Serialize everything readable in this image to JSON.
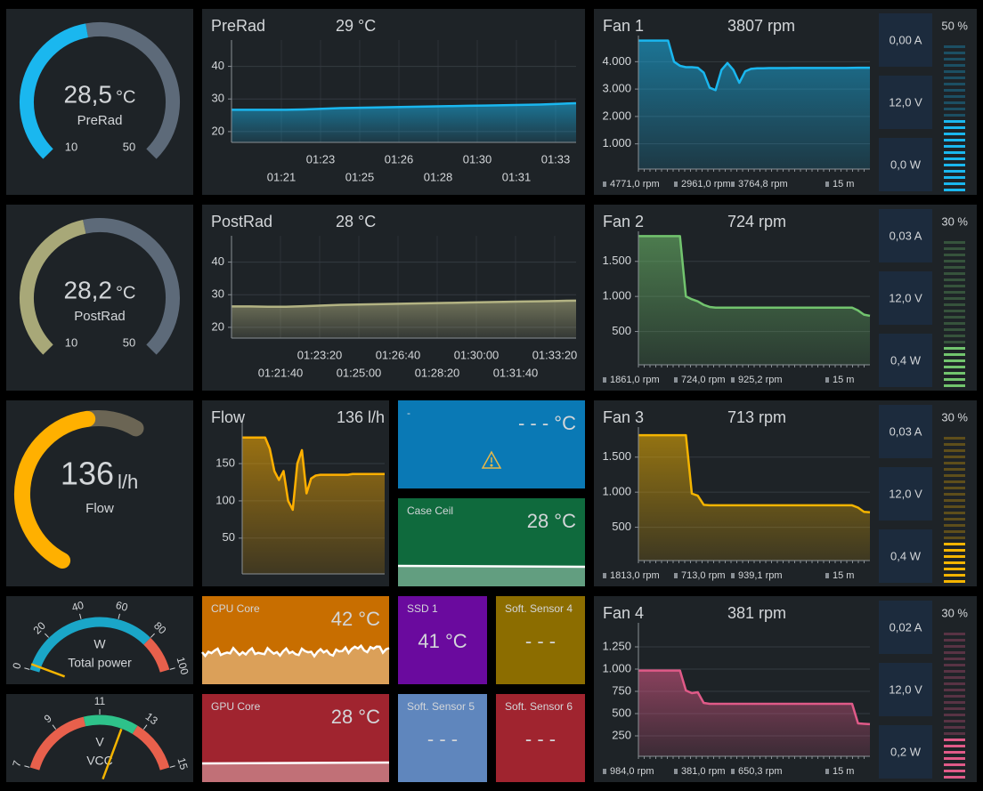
{
  "gauges": [
    {
      "value": {
        "value": 28.5,
        "label": "28,5"
      },
      "unit": "°C",
      "label": "PreRad",
      "min": 10,
      "max": 50,
      "color": "#1ab7ef"
    },
    {
      "value": {
        "value": 28.2,
        "label": "28,2"
      },
      "unit": "°C",
      "label": "PostRad",
      "min": 10,
      "max": 50,
      "color": "#a8a878"
    },
    {
      "value": 136,
      "unit": "l/h",
      "label": "Flow",
      "color": "#ffb000"
    }
  ],
  "charts": [
    {
      "title": "PreRad",
      "reading": "29 °C",
      "color": "#1ab7ef",
      "ylim": [
        16.7,
        46.7
      ],
      "yticks": [
        20,
        30,
        40
      ],
      "xticks_top": [
        "01:23",
        "01:26",
        "01:30",
        "01:33"
      ],
      "xticks_bottom": [
        "01:21",
        "01:25",
        "01:28",
        "01:31"
      ],
      "values": [
        26.7,
        26.7,
        26.7,
        26.7,
        26.8,
        27.0,
        27.2,
        27.3,
        27.4,
        27.5,
        27.6,
        27.7,
        27.8,
        27.9,
        28.0,
        28.1,
        28.2,
        28.3,
        28.5,
        28.7
      ]
    },
    {
      "title": "PostRad",
      "reading": "28 °C",
      "color": "#b3b383",
      "ylim": [
        16.7,
        46.7
      ],
      "yticks": [
        20,
        30,
        40
      ],
      "xticks_top": [
        "01:23:20",
        "01:26:40",
        "01:30:00",
        "01:33:20"
      ],
      "xticks_bottom": [
        "01:21:40",
        "01:25:00",
        "01:28:20",
        "01:31:40"
      ],
      "values": [
        26.4,
        26.4,
        26.3,
        26.3,
        26.5,
        26.7,
        26.9,
        27.0,
        27.1,
        27.2,
        27.3,
        27.4,
        27.5,
        27.6,
        27.7,
        27.8,
        27.9,
        28.0,
        28.1,
        28.2
      ]
    },
    {
      "title": "Flow",
      "reading": "136 l/h",
      "color": "#ffb000",
      "ylim": [
        2,
        199
      ],
      "yticks": [
        50,
        100,
        150
      ],
      "values": [
        185,
        185,
        185,
        185,
        185,
        185,
        170,
        140,
        128,
        140,
        100,
        88,
        150,
        168,
        110,
        130,
        134,
        135,
        135,
        135,
        135,
        135,
        135,
        135,
        136,
        136,
        136,
        136,
        136,
        136,
        136,
        136
      ]
    }
  ],
  "fans": [
    {
      "title": "Fan 1",
      "reading": "3807 rpm",
      "color": "#1ab7ef",
      "ylim": [
        80,
        4790
      ],
      "yticks": [
        {
          "value": 1000,
          "label": "1.000"
        },
        {
          "value": 2000,
          "label": "2.000"
        },
        {
          "value": 3000,
          "label": "3.000"
        },
        {
          "value": 4000,
          "label": "4.000"
        }
      ],
      "values": [
        4771,
        4771,
        4771,
        4771,
        4771,
        4771,
        4000,
        3850,
        3800,
        3800,
        3780,
        3600,
        3050,
        2961,
        3700,
        3950,
        3700,
        3230,
        3650,
        3740,
        3760,
        3760,
        3765,
        3765,
        3765,
        3765,
        3770,
        3770,
        3770,
        3770,
        3770,
        3770,
        3770,
        3770,
        3770,
        3770,
        3775,
        3780,
        3780,
        3780
      ],
      "stats": [
        "4771,0 rpm",
        "2961,0 rpm",
        "3764,8 rpm",
        "15 m"
      ],
      "amps": "0,00 A",
      "volts": "12,0 V",
      "watts": "0,0 W",
      "percent": {
        "value": 50,
        "label": "50 %"
      }
    },
    {
      "title": "Fan 2",
      "reading": "724 rpm",
      "color": "#72c46e",
      "ylim": [
        25,
        1865
      ],
      "yticks": [
        500,
        {
          "value": 1000,
          "label": "1.000"
        },
        {
          "value": 1500,
          "label": "1.500"
        }
      ],
      "values": [
        1861,
        1861,
        1861,
        1861,
        1861,
        1861,
        1861,
        1861,
        1000,
        960,
        930,
        880,
        850,
        840,
        840,
        840,
        840,
        840,
        840,
        840,
        840,
        840,
        840,
        840,
        840,
        840,
        840,
        840,
        840,
        840,
        840,
        840,
        840,
        840,
        840,
        840,
        840,
        800,
        740,
        724
      ],
      "stats": [
        "1861,0 rpm",
        "724,0 rpm",
        "925,2 rpm",
        "15 m"
      ],
      "amps": "0,03 A",
      "volts": "12,0 V",
      "watts": "0,4 W",
      "percent": {
        "value": 30,
        "label": "30 %"
      }
    },
    {
      "title": "Fan 3",
      "reading": "713 rpm",
      "color": "#f4b400",
      "ylim": [
        25,
        1865
      ],
      "yticks": [
        500,
        {
          "value": 1000,
          "label": "1.000"
        },
        {
          "value": 1500,
          "label": "1.500"
        }
      ],
      "values": [
        1813,
        1813,
        1813,
        1813,
        1813,
        1813,
        1813,
        1813,
        1813,
        980,
        950,
        820,
        813,
        813,
        813,
        813,
        813,
        813,
        813,
        813,
        813,
        813,
        813,
        813,
        813,
        813,
        813,
        813,
        813,
        813,
        813,
        813,
        813,
        813,
        813,
        813,
        813,
        780,
        720,
        713
      ],
      "stats": [
        "1813,0 rpm",
        "713,0 rpm",
        "939,1 rpm",
        "15 m"
      ],
      "amps": "0,03 A",
      "volts": "12,0 V",
      "watts": "0,4 W",
      "percent": {
        "value": 30,
        "label": "30 %"
      }
    },
    {
      "title": "Fan 4",
      "reading": "381 rpm",
      "color": "#e05a88",
      "ylim": [
        20,
        1470
      ],
      "yticks": [
        250,
        500,
        750,
        {
          "value": 1000,
          "label": "1.000"
        },
        {
          "value": 1250,
          "label": "1.250"
        }
      ],
      "values": [
        984,
        984,
        984,
        984,
        984,
        984,
        984,
        984,
        760,
        730,
        740,
        620,
        610,
        610,
        610,
        610,
        610,
        610,
        610,
        610,
        610,
        610,
        610,
        610,
        610,
        610,
        610,
        610,
        610,
        610,
        610,
        610,
        610,
        610,
        610,
        610,
        610,
        390,
        385,
        381
      ],
      "stats": [
        "984,0 rpm",
        "381,0 rpm",
        "650,3 rpm",
        "15 m"
      ],
      "amps": "0,02 A",
      "volts": "12,0 V",
      "watts": "0,2 W",
      "percent": {
        "value": 30,
        "label": "30 %"
      }
    }
  ],
  "tiles": [
    {
      "title": "-",
      "reading": "- - - °C",
      "color": "#0a79b5"
    },
    {
      "title": "Case Ceil",
      "reading": "28 °C",
      "color": "#0f6a3d"
    },
    {
      "title": "CPU Core",
      "reading": "42 °C",
      "color": "#c86e00"
    },
    {
      "title": "GPU Core",
      "reading": "28 °C",
      "color": "#a0242f"
    },
    {
      "title": "SSD 1",
      "reading": "41 °C",
      "color": "#6a0a9e"
    },
    {
      "title": "Soft. Sensor 4",
      "reading": "- - -",
      "color": "#8c6d00"
    },
    {
      "title": "Soft. Sensor 5",
      "reading": "- - -",
      "color": "#5f86bd"
    },
    {
      "title": "Soft. Sensor 6",
      "reading": "- - -",
      "color": "#a0242f"
    }
  ],
  "dials": [
    {
      "unit": "W",
      "label": "Total power",
      "lim": [
        0,
        100
      ],
      "ticks": [
        0,
        20,
        40,
        60,
        80,
        100
      ],
      "value": 3,
      "zones": [
        {
          "from": 0,
          "to": 80,
          "color": "#1aa6c8"
        },
        {
          "from": 80,
          "to": 100,
          "color": "#e8604c"
        }
      ]
    },
    {
      "unit": "V",
      "label": "VCC",
      "lim": [
        7,
        15
      ],
      "ticks": [
        7,
        9,
        11,
        13,
        15
      ],
      "value": 12.1,
      "zones": [
        {
          "from": 7,
          "to": 10.3,
          "color": "#e8604c"
        },
        {
          "from": 10.3,
          "to": 12.7,
          "color": "#2ec28a"
        },
        {
          "from": 12.7,
          "to": 15,
          "color": "#e8604c"
        }
      ]
    }
  ]
}
